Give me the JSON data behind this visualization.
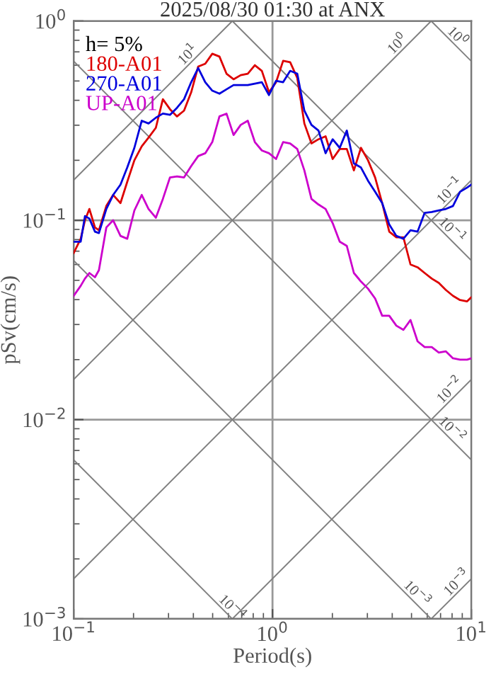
{
  "chart_data": {
    "type": "line",
    "title": "2025/08/30 01:30 at ANX",
    "xlabel": "Period(s)",
    "ylabel": "pSv(cm/s)",
    "log": "xy",
    "grid": true,
    "xlim": [
      0.1,
      10
    ],
    "ylim": [
      0.001,
      1
    ],
    "xticks": [
      {
        "value": 0.1,
        "label": "10$^{−1}$"
      },
      {
        "value": 1,
        "label": "10$^{0}$"
      },
      {
        "value": 10,
        "label": "10$^{1}$"
      }
    ],
    "yticks": [
      {
        "value": 0.001,
        "label": "10$^{−3}$"
      },
      {
        "value": 0.01,
        "label": "10$^{−2}$"
      },
      {
        "value": 0.1,
        "label": "10$^{−1}$"
      },
      {
        "value": 1,
        "label": "10$^{0}$"
      }
    ],
    "x": [
      0.1,
      0.1085,
      0.114,
      0.12,
      0.128,
      0.134,
      0.146,
      0.158,
      0.172,
      0.186,
      0.202,
      0.22,
      0.238,
      0.259,
      0.281,
      0.305,
      0.331,
      0.359,
      0.39,
      0.423,
      0.459,
      0.498,
      0.541,
      0.587,
      0.637,
      0.692,
      0.751,
      0.815,
      0.884,
      0.96,
      1.042,
      1.131,
      1.227,
      1.332,
      1.446,
      1.57,
      1.703,
      1.849,
      2.007,
      2.178,
      2.364,
      2.566,
      2.785,
      3.022,
      3.281,
      3.561,
      3.865,
      4.195,
      4.553,
      4.943,
      5.364,
      5.823,
      6.32,
      6.86,
      7.446,
      8.082,
      8.772,
      9.52,
      10
    ],
    "series": [
      {
        "name": "180-A01",
        "color": "#dd0000",
        "values": [
          0.0685,
          0.0808,
          0.1,
          0.114,
          0.0921,
          0.0891,
          0.118,
          0.134,
          0.122,
          0.156,
          0.2,
          0.235,
          0.26,
          0.291,
          0.405,
          0.361,
          0.332,
          0.355,
          0.439,
          0.591,
          0.61,
          0.685,
          0.663,
          0.544,
          0.51,
          0.535,
          0.544,
          0.6,
          0.562,
          0.439,
          0.493,
          0.631,
          0.621,
          0.518,
          0.306,
          0.243,
          0.255,
          0.264,
          0.203,
          0.228,
          0.228,
          0.178,
          0.231,
          0.2,
          0.164,
          0.122,
          0.0877,
          0.0821,
          0.0821,
          0.06,
          0.0581,
          0.0544,
          0.051,
          0.0485,
          0.0447,
          0.0418,
          0.0398,
          0.0392,
          0.0411
        ]
      },
      {
        "name": "270-A01",
        "color": "#0000dd",
        "values": [
          0.0781,
          0.0781,
          0.105,
          0.102,
          0.0877,
          0.0863,
          0.114,
          0.134,
          0.151,
          0.184,
          0.231,
          0.316,
          0.306,
          0.327,
          0.343,
          0.338,
          0.367,
          0.405,
          0.493,
          0.581,
          0.493,
          0.447,
          0.432,
          0.454,
          0.477,
          0.477,
          0.477,
          0.485,
          0.493,
          0.425,
          0.501,
          0.493,
          0.562,
          0.544,
          0.355,
          0.301,
          0.282,
          0.217,
          0.255,
          0.231,
          0.282,
          0.193,
          0.184,
          0.158,
          0.139,
          0.122,
          0.0952,
          0.0835,
          0.0808,
          0.0891,
          0.0877,
          0.109,
          0.11,
          0.112,
          0.114,
          0.118,
          0.139,
          0.146,
          0.151
        ]
      },
      {
        "name": "UP-A01",
        "color": "#cc00cc",
        "values": [
          0.0418,
          0.0469,
          0.051,
          0.0544,
          0.0518,
          0.0562,
          0.0921,
          0.1,
          0.0835,
          0.0808,
          0.112,
          0.134,
          0.114,
          0.103,
          0.128,
          0.164,
          0.166,
          0.164,
          0.187,
          0.21,
          0.217,
          0.247,
          0.332,
          0.343,
          0.268,
          0.301,
          0.316,
          0.247,
          0.224,
          0.217,
          0.203,
          0.247,
          0.243,
          0.228,
          0.178,
          0.128,
          0.12,
          0.114,
          0.0968,
          0.0781,
          0.0744,
          0.0544,
          0.0493,
          0.0454,
          0.0405,
          0.0332,
          0.0332,
          0.0296,
          0.0282,
          0.0316,
          0.0247,
          0.0231,
          0.0231,
          0.0217,
          0.022,
          0.0203,
          0.02,
          0.02,
          0.0203
        ]
      },
      {
        "color": "#808080",
        "x": [
          0.1,
          0.628
        ],
        "values": [
          0.159,
          1
        ]
      },
      {
        "color": "#808080",
        "x": [
          0.1,
          6.28
        ],
        "values": [
          0.0159,
          1
        ]
      },
      {
        "color": "#808080",
        "x": [
          0.1,
          10
        ],
        "values": [
          0.00159,
          0.159
        ]
      },
      {
        "color": "#808080",
        "x": [
          0.628,
          10
        ],
        "values": [
          0.001,
          0.0159
        ]
      },
      {
        "color": "#808080",
        "x": [
          6.28,
          10
        ],
        "values": [
          0.001,
          0.00159
        ]
      },
      {
        "color": "#808080",
        "x": [
          6.28,
          10
        ],
        "values": [
          1,
          0.628
        ]
      },
      {
        "color": "#808080",
        "x": [
          0.628,
          10
        ],
        "values": [
          1,
          0.0628
        ]
      },
      {
        "color": "#808080",
        "x": [
          0.1,
          10
        ],
        "values": [
          0.628,
          0.00628
        ]
      },
      {
        "color": "#808080",
        "x": [
          0.1,
          6.28
        ],
        "values": [
          0.0628,
          0.001
        ]
      },
      {
        "color": "#808080",
        "x": [
          0.1,
          0.628
        ],
        "values": [
          0.00628,
          0.001
        ]
      }
    ],
    "annotations": [
      "h= 5%",
      {
        "text": "10$^{1}$",
        "x": 0.4,
        "y": 0.637
      },
      {
        "text": "10$^{0}$",
        "x": 4.53,
        "y": 0.721
      },
      {
        "text": "10$^{−1}$",
        "x": 8.3,
        "y": 0.132
      },
      {
        "text": "10$^{−2}$",
        "x": 8.3,
        "y": 0.0132
      },
      {
        "text": "10$^{−3}$",
        "x": 9.0,
        "y": 0.00143
      },
      {
        "text": "10$^{0}$",
        "x": 8.0,
        "y": 0.785
      },
      {
        "text": "10$^{−1}$",
        "x": 7.5,
        "y": 0.0838
      },
      {
        "text": "10$^{−2}$",
        "x": 7.5,
        "y": 0.00838
      },
      {
        "text": "10$^{−3}$",
        "x": 5.0,
        "y": 0.00126
      },
      {
        "text": "10$^{−4}$",
        "x": 0.587,
        "y": 0.00107
      }
    ]
  }
}
